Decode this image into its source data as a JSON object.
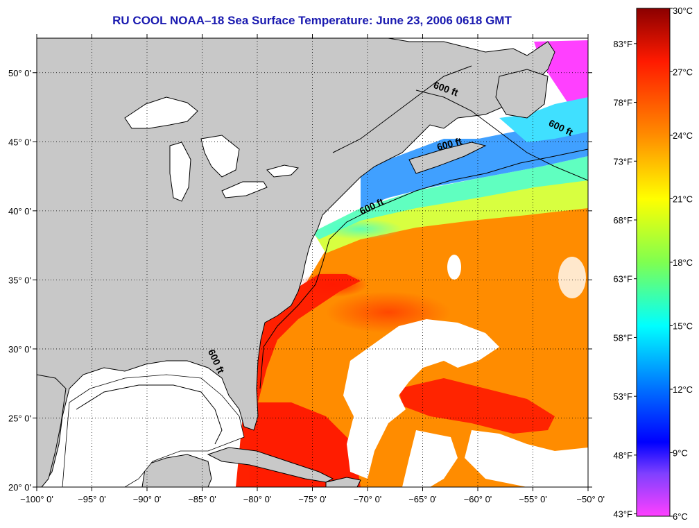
{
  "title": "RU COOL  NOAA–18  Sea Surface Temperature:  June 23, 2006 0618 GMT",
  "map": {
    "lon_range": [
      -100,
      -50
    ],
    "lat_range": [
      20,
      52.5
    ],
    "lat_labels": [
      {
        "lat": 50,
        "text": "50° 0'"
      },
      {
        "lat": 45,
        "text": "45° 0'"
      },
      {
        "lat": 40,
        "text": "40° 0'"
      },
      {
        "lat": 35,
        "text": "35° 0'"
      },
      {
        "lat": 30,
        "text": "30° 0'"
      },
      {
        "lat": 25,
        "text": "25° 0'"
      },
      {
        "lat": 20,
        "text": "20° 0'"
      }
    ],
    "lon_labels": [
      {
        "lon": -100,
        "text": "−100° 0'"
      },
      {
        "lon": -95,
        "text": "−95° 0'"
      },
      {
        "lon": -90,
        "text": "−90° 0'"
      },
      {
        "lon": -85,
        "text": "−85° 0'"
      },
      {
        "lon": -80,
        "text": "−80° 0'"
      },
      {
        "lon": -75,
        "text": "−75° 0'"
      },
      {
        "lon": -70,
        "text": "−70° 0'"
      },
      {
        "lon": -65,
        "text": "−65° 0'"
      },
      {
        "lon": -60,
        "text": "−60° 0'"
      },
      {
        "lon": -55,
        "text": "−55° 0'"
      },
      {
        "lon": -50,
        "text": "−50° 0'"
      }
    ],
    "contour_labels": [
      {
        "text": "600 ft",
        "lon": -63.0,
        "lat": 48.6
      },
      {
        "text": "600 ft",
        "lon": -52.6,
        "lat": 45.8
      },
      {
        "text": "600 ft",
        "lon": -62.5,
        "lat": 44.6
      },
      {
        "text": "600 ft",
        "lon": -69.5,
        "lat": 40.1
      },
      {
        "text": "600 ft",
        "lon": -84.0,
        "lat": 29.0
      }
    ]
  },
  "colorbar": {
    "celsius_range": [
      6,
      30
    ],
    "celsius_labels": [
      {
        "value": 30,
        "text": "30°C"
      },
      {
        "value": 27,
        "text": "27°C"
      },
      {
        "value": 24,
        "text": "24°C"
      },
      {
        "value": 21,
        "text": "21°C"
      },
      {
        "value": 18,
        "text": "18°C"
      },
      {
        "value": 15,
        "text": "15°C"
      },
      {
        "value": 12,
        "text": "12°C"
      },
      {
        "value": 9,
        "text": "9°C"
      },
      {
        "value": 6,
        "text": "6°C"
      }
    ],
    "fahrenheit_labels": [
      {
        "value": 83,
        "text": "83°F"
      },
      {
        "value": 78,
        "text": "78°F"
      },
      {
        "value": 73,
        "text": "73°F"
      },
      {
        "value": 68,
        "text": "68°F"
      },
      {
        "value": 63,
        "text": "63°F"
      },
      {
        "value": 58,
        "text": "58°F"
      },
      {
        "value": 53,
        "text": "53°F"
      },
      {
        "value": 48,
        "text": "48°F"
      },
      {
        "value": 43,
        "text": "43°F"
      }
    ],
    "stops": [
      {
        "value": 30,
        "color": "#8b0000"
      },
      {
        "value": 27.5,
        "color": "#ff1a00"
      },
      {
        "value": 24,
        "color": "#ff8c00"
      },
      {
        "value": 21,
        "color": "#ffff00"
      },
      {
        "value": 18,
        "color": "#7fff50"
      },
      {
        "value": 15,
        "color": "#00ffff"
      },
      {
        "value": 12,
        "color": "#0070ff"
      },
      {
        "value": 9.5,
        "color": "#0000ff"
      },
      {
        "value": 8,
        "color": "#8040ff"
      },
      {
        "value": 6,
        "color": "#ff40ff"
      }
    ]
  },
  "colors": {
    "land": "#c8c8c8",
    "cloud": "#ffffff",
    "coastline": "#000000",
    "title": "#1a1ab0"
  }
}
